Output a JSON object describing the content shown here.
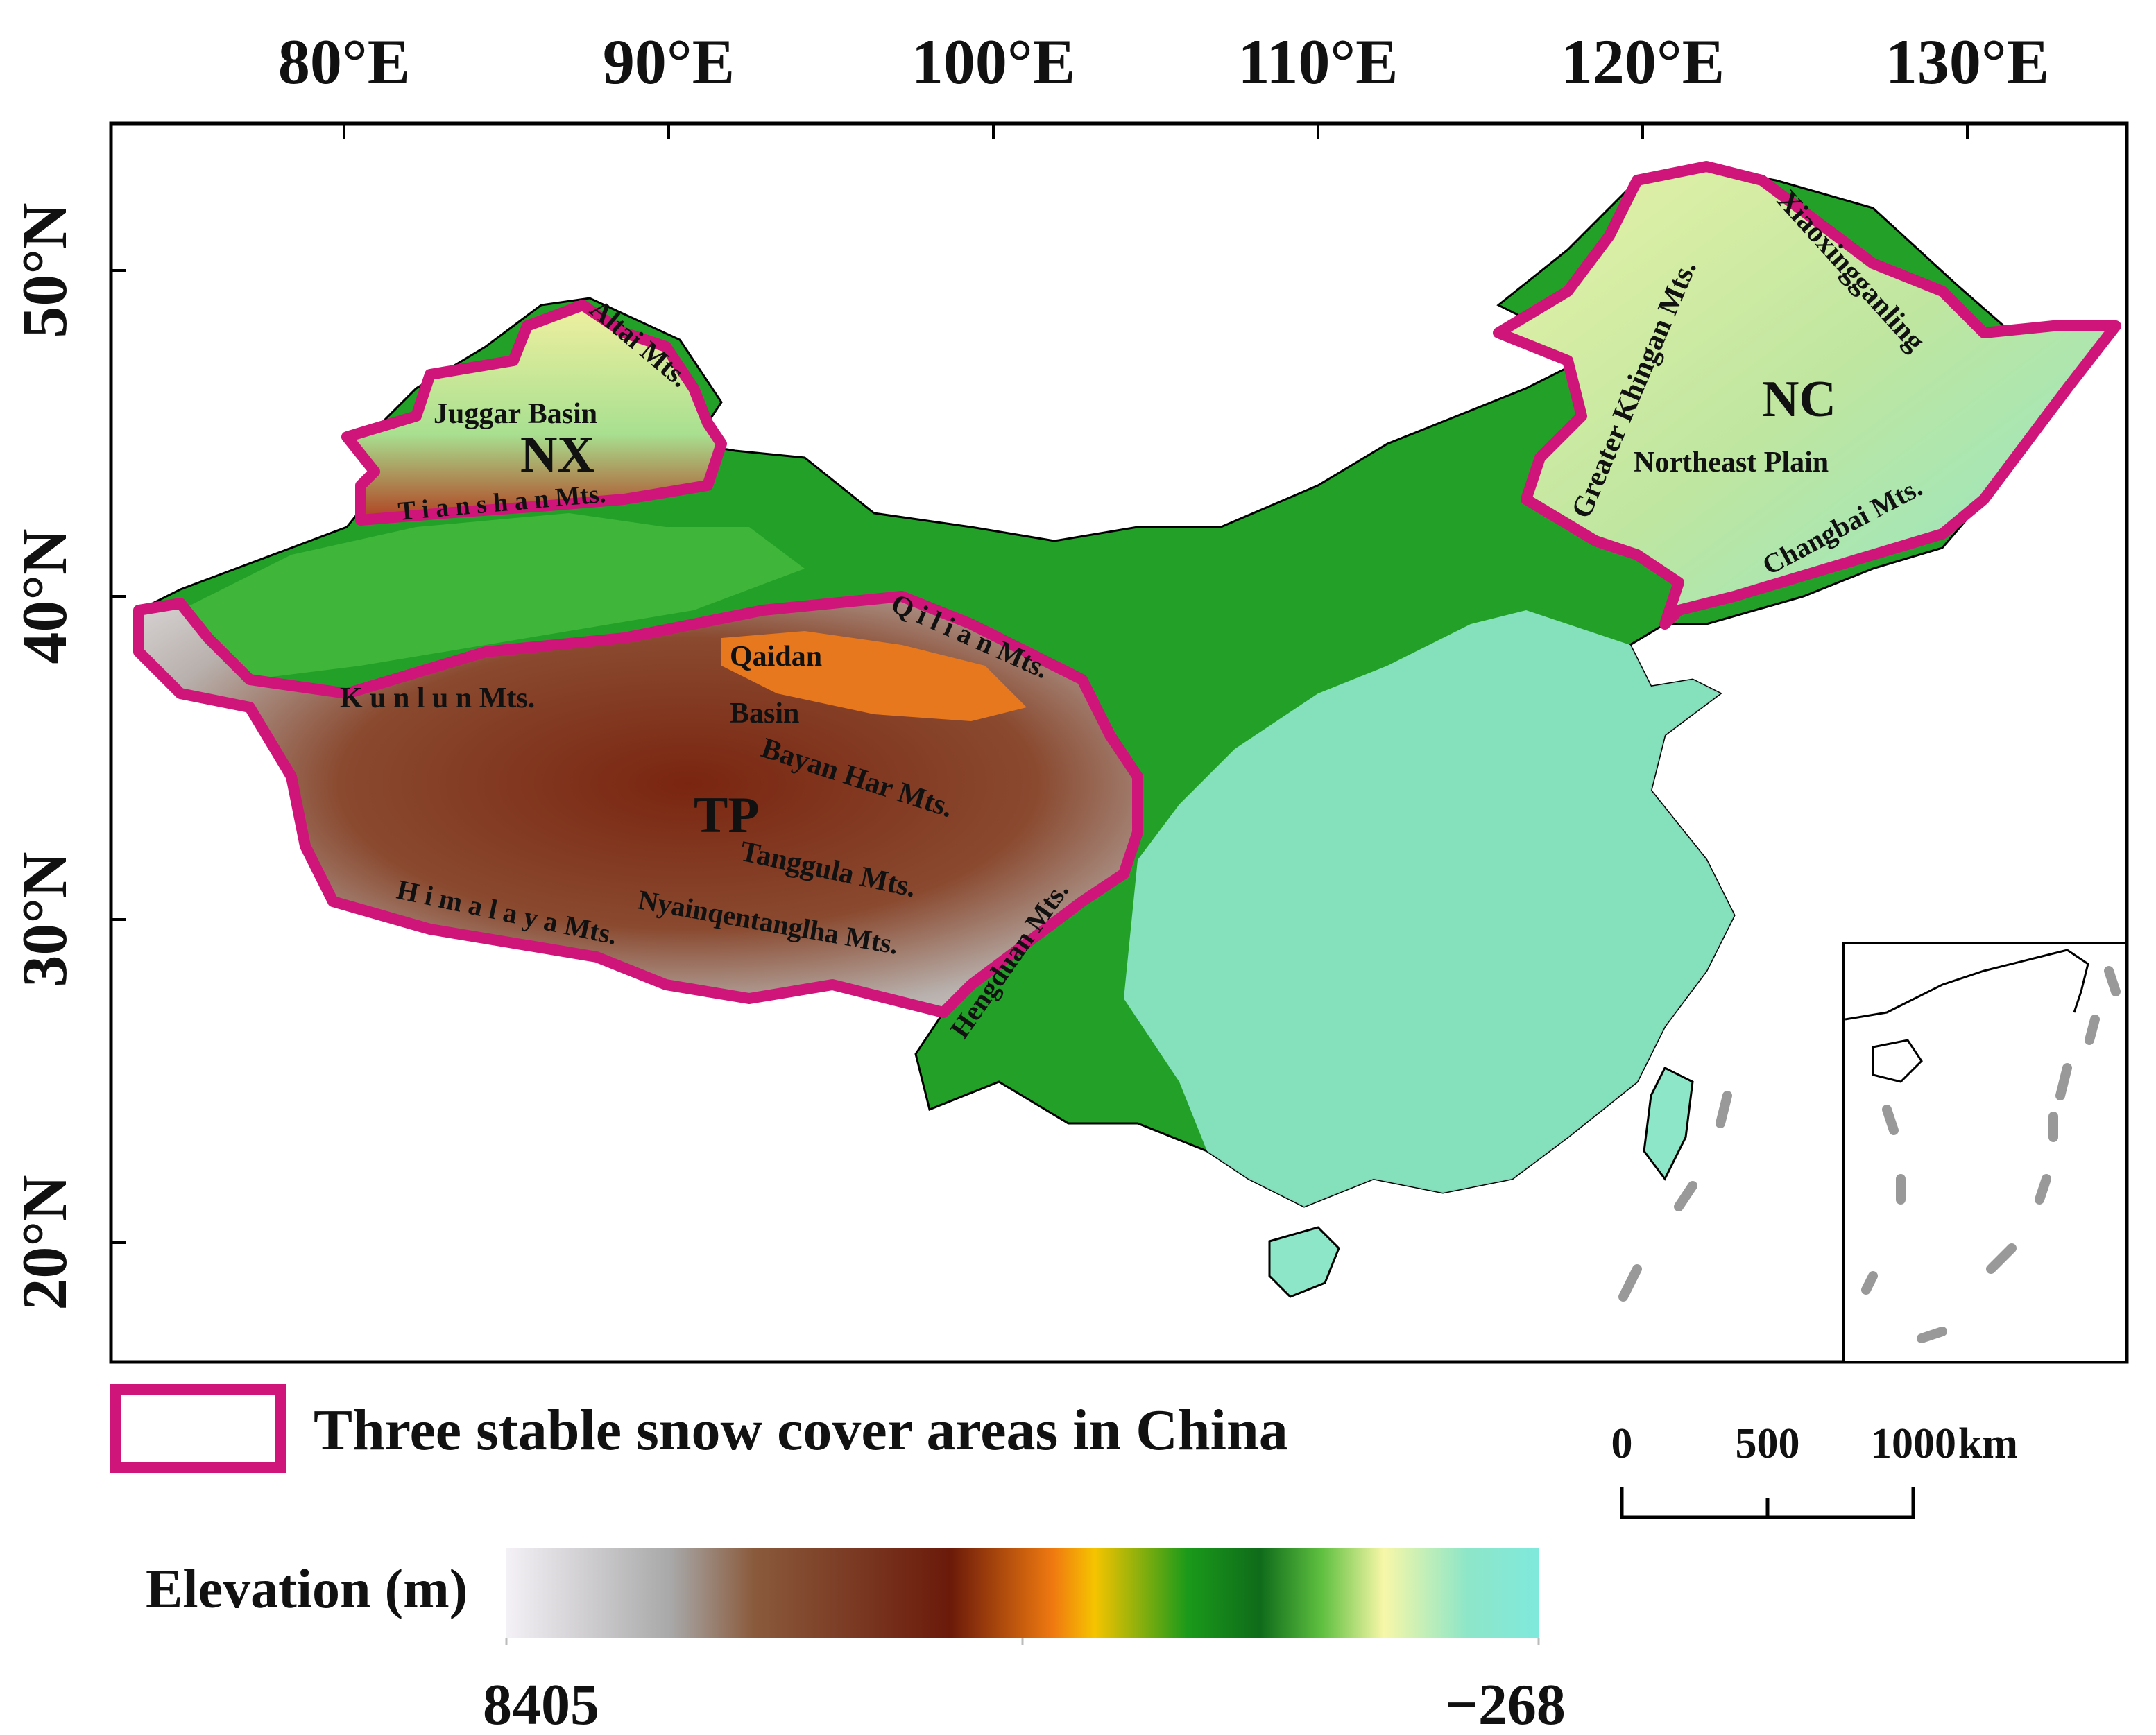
{
  "axes": {
    "lon_labels": [
      "80°E",
      "90°E",
      "100°E",
      "110°E",
      "120°E",
      "130°E"
    ],
    "lat_labels": [
      "50°N",
      "40°N",
      "30°N",
      "20°N"
    ]
  },
  "regions": {
    "nx": "NX",
    "tp": "TP",
    "nc": "NC",
    "boundary_color": "#d0157a"
  },
  "features": {
    "altai": "Altai Mts.",
    "juggar": "Juggar Basin",
    "tianshan": "T i a n s h a n Mts.",
    "kunlun": "K u n l u n Mts.",
    "qaidan_1": "Qaidan",
    "qaidan_2": "Basin",
    "qilian": "Q i l i a n Mts.",
    "bayanhar": "Bayan Har Mts.",
    "tanggula": "Tanggula Mts.",
    "nyainqen": "Nyainqentanglha Mts.",
    "himalaya": "H i m a l a y a Mts.",
    "hengduan": "Hengduan Mts.",
    "greater_khingan": "Greater Khingan Mts.",
    "xiaoxing": "Xiaoxingganling",
    "northeast_plain": "Northeast Plain",
    "changbai": "Changbai Mts."
  },
  "legend": {
    "snow_areas": "Three stable snow cover areas in China",
    "elevation_title": "Elevation (m)",
    "elev_max": "8405",
    "elev_min": "−268",
    "colors": [
      "#f4f1f6",
      "#a8a8a8",
      "#8a5a3c",
      "#6b1a0a",
      "#f07a10",
      "#f5c400",
      "#1a9a1a",
      "#0f6b1a",
      "#5fc040",
      "#f7f7a8",
      "#8ee6c8",
      "#7fe9dc"
    ]
  },
  "scalebar": {
    "label_0": "0",
    "label_500": "500",
    "label_1000": "1000",
    "unit": "km"
  }
}
